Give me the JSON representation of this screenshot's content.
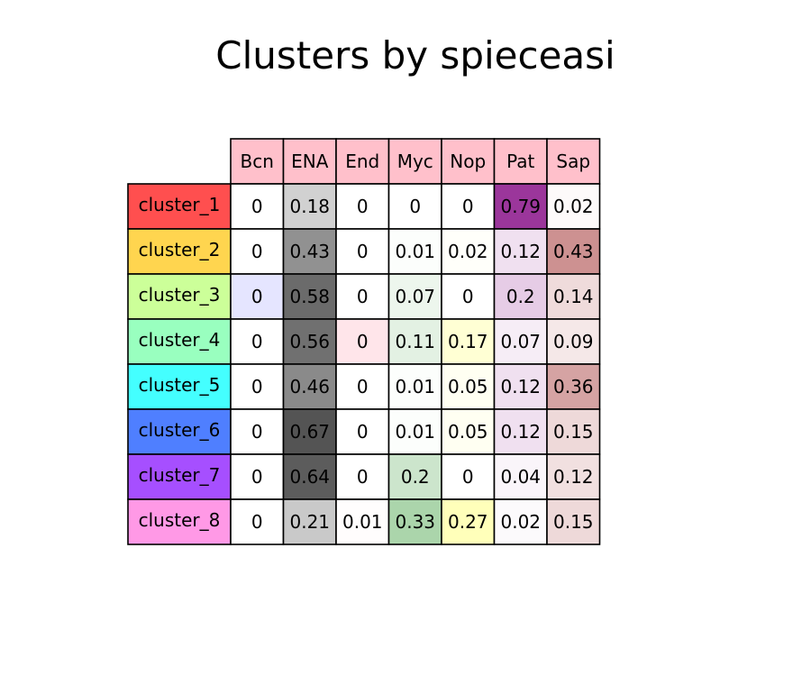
{
  "chart_data": {
    "type": "table",
    "title": "Clusters by spieceasi",
    "columns": [
      "Bcn",
      "ENA",
      "End",
      "Myc",
      "Nop",
      "Pat",
      "Sap"
    ],
    "column_colors": {
      "Bcn": "#0000ff",
      "ENA": "#000000",
      "End": "#ff3f5f",
      "Myc": "#007f00",
      "Nop": "#ffff00",
      "Pat": "#800080",
      "Sap": "#8b0000"
    },
    "header_color": "#ffc0cb",
    "rows": [
      {
        "label": "cluster_1",
        "color": "#ff4f4f",
        "values": [
          0.0,
          0.18,
          0.0,
          0.0,
          0.0,
          0.79,
          0.02
        ]
      },
      {
        "label": "cluster_2",
        "color": "#ffd54f",
        "values": [
          0.0,
          0.43,
          0.0,
          0.01,
          0.02,
          0.12,
          0.43
        ]
      },
      {
        "label": "cluster_3",
        "color": "#ccff99",
        "values": [
          0.0,
          0.58,
          0.0,
          0.07,
          0.0,
          0.2,
          0.14
        ]
      },
      {
        "label": "cluster_4",
        "color": "#99ffbf",
        "values": [
          0.0,
          0.56,
          0.0,
          0.11,
          0.17,
          0.07,
          0.09
        ]
      },
      {
        "label": "cluster_5",
        "color": "#44ffff",
        "values": [
          0.0,
          0.46,
          0.0,
          0.01,
          0.05,
          0.12,
          0.36
        ]
      },
      {
        "label": "cluster_6",
        "color": "#4f7fff",
        "values": [
          0.0,
          0.67,
          0.0,
          0.01,
          0.05,
          0.12,
          0.15
        ]
      },
      {
        "label": "cluster_7",
        "color": "#a64fff",
        "values": [
          0.0,
          0.64,
          0.0,
          0.2,
          0.0,
          0.04,
          0.12
        ]
      },
      {
        "label": "cluster_8",
        "color": "#ff99e6",
        "values": [
          0.0,
          0.21,
          0.01,
          0.33,
          0.27,
          0.02,
          0.15
        ]
      }
    ],
    "highlights": [
      {
        "row": 2,
        "col": 0,
        "color": "#e5e5ff"
      },
      {
        "row": 3,
        "col": 2,
        "color": "#ffe5ea"
      }
    ]
  }
}
